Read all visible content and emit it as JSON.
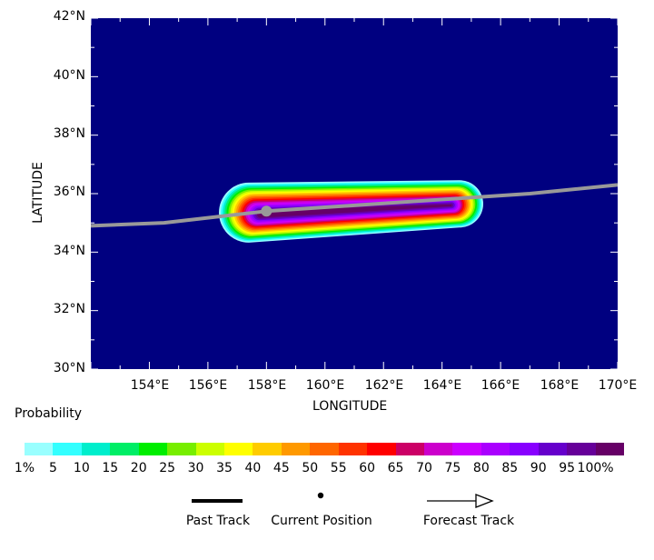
{
  "map": {
    "lon_range": [
      152,
      170
    ],
    "lat_range": [
      30,
      42
    ],
    "background_color": "#000080",
    "grid": false,
    "y_tick_labels": [
      "42°N",
      "40°N",
      "38°N",
      "36°N",
      "34°N",
      "32°N",
      "30°N"
    ],
    "x_tick_labels": [
      "154°E",
      "156°E",
      "158°E",
      "160°E",
      "162°E",
      "164°E",
      "166°E",
      "168°E",
      "170°E"
    ],
    "xlabel": "LONGITUDE",
    "ylabel": "LATITUDE",
    "current_position": {
      "lon": 158.0,
      "lat": 35.4
    },
    "track": [
      {
        "lon": 152.0,
        "lat": 34.9
      },
      {
        "lon": 154.5,
        "lat": 35.0
      },
      {
        "lon": 158.0,
        "lat": 35.4
      },
      {
        "lon": 161.0,
        "lat": 35.6
      },
      {
        "lon": 164.0,
        "lat": 35.8
      },
      {
        "lon": 167.0,
        "lat": 36.0
      },
      {
        "lon": 170.0,
        "lat": 36.3
      }
    ],
    "track_color": "#999999",
    "probability_core": {
      "start": {
        "lon": 157.8,
        "lat": 35.3
      },
      "end": {
        "lon": 164.3,
        "lat": 35.6
      }
    },
    "probability_outer": {
      "start": {
        "lon": 157.4,
        "lat": 35.35
      },
      "end": {
        "lon": 164.6,
        "lat": 35.65
      }
    }
  },
  "legend": {
    "title": "Probability",
    "colors": [
      "#99ffff",
      "#33ffff",
      "#00eecc",
      "#00ee66",
      "#00ee00",
      "#77ee00",
      "#ccff00",
      "#ffff00",
      "#ffcc00",
      "#ff9900",
      "#ff6600",
      "#ff3300",
      "#ff0000",
      "#cc0066",
      "#cc00cc",
      "#cc00ff",
      "#aa00ff",
      "#8800ff",
      "#6600cc",
      "#660099",
      "#660066"
    ],
    "labels": [
      "1%",
      "5",
      "10",
      "15",
      "20",
      "25",
      "30",
      "35",
      "40",
      "45",
      "50",
      "55",
      "60",
      "65",
      "70",
      "75",
      "80",
      "85",
      "90",
      "95",
      "100%"
    ]
  },
  "key": {
    "past_track": "Past Track",
    "current_position": "Current Position",
    "forecast_track": "Forecast Track"
  }
}
